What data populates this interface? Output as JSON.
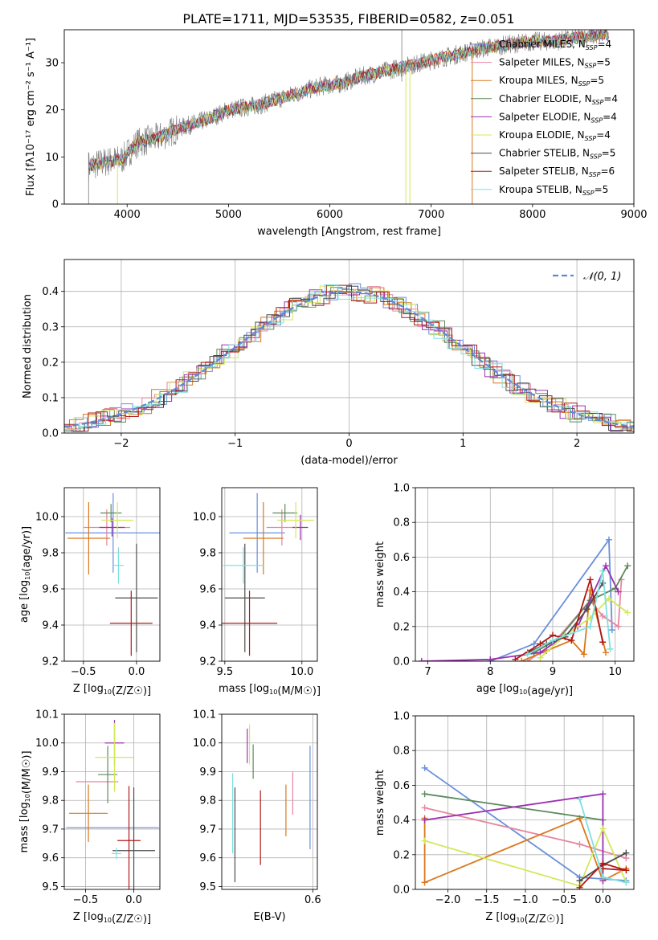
{
  "colors": {
    "Chabrier MILES": "#6a8fdc",
    "Salpeter MILES": "#e5879f",
    "Kroupa MILES": "#d9781d",
    "Chabrier ELODIE": "#5c8a5c",
    "Salpeter ELODIE": "#9c30b0",
    "Kroupa ELODIE": "#d3e85a",
    "Chabrier STELIB": "#4d4d4d",
    "Salpeter STELIB": "#b01818",
    "Kroupa STELIB": "#7fe0e0",
    "normal": "#5b8ad6"
  },
  "chart_data": [
    {
      "id": "spectrum",
      "type": "line",
      "title": "PLATE=1711, MJD=53535, FIBERID=0582, z=0.051",
      "xlabel": "wavelength [Angstrom, rest frame]",
      "ylabel": "Flux [fλ10⁻¹⁷ erg cm⁻² s⁻¹ A⁻¹]",
      "xlim": [
        3380,
        9000
      ],
      "ylim": [
        0,
        37
      ],
      "xticks": [
        4000,
        5000,
        6000,
        7000,
        8000,
        9000
      ],
      "yticks": [
        0,
        10,
        20,
        30
      ],
      "continuum": {
        "x": [
          3620,
          3800,
          3950,
          4100,
          4300,
          4500,
          4800,
          5000,
          5300,
          5600,
          5900,
          6100,
          6300,
          6500,
          6800,
          7000,
          7200,
          7500,
          7800,
          8000,
          8200,
          8500,
          8750
        ],
        "y": [
          8,
          9,
          9.5,
          13,
          14,
          16,
          18,
          20,
          21,
          23,
          25,
          25.5,
          27,
          28,
          29.5,
          30.5,
          31.5,
          33,
          34,
          34.5,
          34.5,
          35.5,
          36
        ]
      },
      "legend": [
        {
          "label": "Chabrier MILES, N",
          "sub": "SSP",
          "tail": "=4"
        },
        {
          "label": "Salpeter MILES, N",
          "sub": "SSP",
          "tail": "=5"
        },
        {
          "label": "Kroupa MILES, N",
          "sub": "SSP",
          "tail": "=5"
        },
        {
          "label": "Chabrier ELODIE, N",
          "sub": "SSP",
          "tail": "=4"
        },
        {
          "label": "Salpeter ELODIE, N",
          "sub": "SSP",
          "tail": "=4"
        },
        {
          "label": "Kroupa ELODIE, N",
          "sub": "SSP",
          "tail": "=4"
        },
        {
          "label": "Chabrier STELIB, N",
          "sub": "SSP",
          "tail": "=5"
        },
        {
          "label": "Salpeter STELIB, N",
          "sub": "SSP",
          "tail": "=6"
        },
        {
          "label": "Kroupa STELIB, N",
          "sub": "SSP",
          "tail": "=5"
        }
      ],
      "legend_position": "right"
    },
    {
      "id": "residuals",
      "type": "histogram",
      "xlabel": "(data-model)/error",
      "ylabel": "Normed distribution",
      "xlim": [
        -2.5,
        2.5
      ],
      "ylim": [
        0,
        0.49
      ],
      "xticks": [
        -2,
        -1,
        0,
        1,
        2
      ],
      "yticks": [
        0.0,
        0.1,
        0.2,
        0.3,
        0.4
      ],
      "legend": "𝒩(0, 1)",
      "legend_position": "top-right",
      "grid": true
    },
    {
      "id": "age-vs-Z",
      "type": "errorbar",
      "xlabel": "Z [log10(Z/Z☉)]",
      "ylabel": "age  [log10(age/yr)]",
      "xlim": [
        -0.68,
        0.22
      ],
      "ylim": [
        9.2,
        10.16
      ],
      "xticks": [
        -0.5,
        0.0
      ],
      "yticks": [
        9.2,
        9.4,
        9.6,
        9.8,
        10.0
      ],
      "points": [
        {
          "model": "Chabrier MILES",
          "x": -0.22,
          "xerr": 0.45,
          "y": 9.91,
          "yerr": 0.22
        },
        {
          "model": "Salpeter MILES",
          "x": -0.28,
          "xerr": 0.22,
          "y": 9.94,
          "yerr": 0.1
        },
        {
          "model": "Kroupa MILES",
          "x": -0.45,
          "xerr": 0.2,
          "y": 9.88,
          "yerr": 0.2
        },
        {
          "model": "Chabrier ELODIE",
          "x": -0.24,
          "xerr": 0.1,
          "y": 10.02,
          "yerr": 0.05
        },
        {
          "model": "Salpeter ELODIE",
          "x": -0.23,
          "xerr": 0.12,
          "y": 9.94,
          "yerr": 0.05
        },
        {
          "model": "Kroupa ELODIE",
          "x": -0.18,
          "xerr": 0.15,
          "y": 9.98,
          "yerr": 0.1
        },
        {
          "model": "Chabrier STELIB",
          "x": 0.0,
          "xerr": 0.2,
          "y": 9.55,
          "yerr": 0.3
        },
        {
          "model": "Salpeter STELIB",
          "x": -0.05,
          "xerr": 0.2,
          "y": 9.41,
          "yerr": 0.18
        },
        {
          "model": "Kroupa STELIB",
          "x": -0.17,
          "xerr": 0.05,
          "y": 9.73,
          "yerr": 0.1
        }
      ]
    },
    {
      "id": "age-vs-mass",
      "type": "errorbar",
      "xlabel": "mass [log10(M/M☉)]",
      "ylabel": "",
      "xlim": [
        9.48,
        10.1
      ],
      "ylim": [
        9.2,
        10.16
      ],
      "xticks": [
        9.5,
        10.0
      ],
      "yticks": [
        9.2,
        9.4,
        9.6,
        9.8,
        10.0
      ],
      "points": [
        {
          "model": "Chabrier MILES",
          "x": 9.71,
          "xerr": 0.18,
          "y": 9.91,
          "yerr": 0.22
        },
        {
          "model": "Salpeter MILES",
          "x": 9.87,
          "xerr": 0.1,
          "y": 9.94,
          "yerr": 0.1
        },
        {
          "model": "Kroupa MILES",
          "x": 9.75,
          "xerr": 0.13,
          "y": 9.88,
          "yerr": 0.2
        },
        {
          "model": "Chabrier ELODIE",
          "x": 9.89,
          "xerr": 0.08,
          "y": 10.02,
          "yerr": 0.05
        },
        {
          "model": "Salpeter ELODIE",
          "x": 9.99,
          "xerr": 0.05,
          "y": 9.94,
          "yerr": 0.07
        },
        {
          "model": "Kroupa ELODIE",
          "x": 9.96,
          "xerr": 0.12,
          "y": 9.98,
          "yerr": 0.1
        },
        {
          "model": "Chabrier STELIB",
          "x": 9.63,
          "xerr": 0.13,
          "y": 9.55,
          "yerr": 0.3
        },
        {
          "model": "Salpeter STELIB",
          "x": 9.66,
          "xerr": 0.18,
          "y": 9.41,
          "yerr": 0.18
        },
        {
          "model": "Kroupa STELIB",
          "x": 9.62,
          "xerr": 0.13,
          "y": 9.73,
          "yerr": 0.1
        }
      ]
    },
    {
      "id": "massweight-vs-age",
      "type": "line",
      "xlabel": "age  [log10(age/yr)]",
      "ylabel": "mass weight",
      "xlim": [
        6.8,
        10.3
      ],
      "ylim": [
        0,
        1
      ],
      "xticks": [
        7,
        8,
        9,
        10
      ],
      "yticks": [
        0.0,
        0.2,
        0.4,
        0.6,
        0.8,
        1.0
      ],
      "grid": true,
      "series": [
        {
          "model": "Chabrier MILES",
          "x": [
            8.0,
            8.7,
            9.9,
            9.95
          ],
          "y": [
            0.0,
            0.1,
            0.7,
            0.18
          ]
        },
        {
          "model": "Salpeter MILES",
          "x": [
            8.6,
            9.0,
            9.6,
            9.8,
            10.05,
            10.1
          ],
          "y": [
            0.0,
            0.1,
            0.35,
            0.26,
            0.2,
            0.47
          ]
        },
        {
          "model": "Kroupa MILES",
          "x": [
            8.5,
            8.9,
            9.3,
            9.5,
            9.6,
            9.85
          ],
          "y": [
            0.0,
            0.06,
            0.12,
            0.04,
            0.41,
            0.05
          ]
        },
        {
          "model": "Chabrier ELODIE",
          "x": [
            8.7,
            9.1,
            9.6,
            10.0,
            10.2
          ],
          "y": [
            0.05,
            0.13,
            0.35,
            0.42,
            0.55
          ]
        },
        {
          "model": "Salpeter ELODIE",
          "x": [
            6.9,
            8.0,
            8.8,
            9.4,
            9.85,
            10.05
          ],
          "y": [
            0.0,
            0.01,
            0.05,
            0.2,
            0.55,
            0.4
          ]
        },
        {
          "model": "Kroupa ELODIE",
          "x": [
            8.8,
            9.2,
            9.6,
            9.9,
            10.2
          ],
          "y": [
            0.02,
            0.15,
            0.25,
            0.36,
            0.28
          ]
        },
        {
          "model": "Chabrier STELIB",
          "x": [
            8.6,
            8.9,
            9.2,
            9.55,
            9.8
          ],
          "y": [
            0.05,
            0.1,
            0.14,
            0.3,
            0.45
          ]
        },
        {
          "model": "Salpeter STELIB",
          "x": [
            8.4,
            8.8,
            9.0,
            9.3,
            9.6,
            9.8
          ],
          "y": [
            0.01,
            0.1,
            0.15,
            0.12,
            0.47,
            0.11
          ]
        },
        {
          "model": "Kroupa STELIB",
          "x": [
            8.6,
            9.0,
            9.6,
            9.8,
            9.92
          ],
          "y": [
            0.04,
            0.12,
            0.2,
            0.52,
            0.07
          ]
        }
      ]
    },
    {
      "id": "mass-vs-Z",
      "type": "errorbar",
      "xlabel": "Z [log10(Z/Z☉)]",
      "ylabel": "mass [log10(M/M☉)]",
      "xlim": [
        -0.72,
        0.27
      ],
      "ylim": [
        9.49,
        10.1
      ],
      "xticks": [
        -0.5,
        0.0
      ],
      "yticks": [
        9.5,
        9.6,
        9.7,
        9.8,
        9.9,
        10.0,
        10.1
      ],
      "points": [
        {
          "model": "Chabrier MILES",
          "x": -0.22,
          "xerr": 0.48,
          "y": 9.705,
          "yerr": 0.0
        },
        {
          "model": "Salpeter MILES",
          "x": -0.38,
          "xerr": 0.22,
          "y": 9.865,
          "yerr": 0.0
        },
        {
          "model": "Kroupa MILES",
          "x": -0.47,
          "xerr": 0.2,
          "y": 9.755,
          "yerr": 0.1
        },
        {
          "model": "Chabrier ELODIE",
          "x": -0.27,
          "xerr": 0.1,
          "y": 9.89,
          "yerr": 0.1
        },
        {
          "model": "Salpeter ELODIE",
          "x": -0.2,
          "xerr": 0.1,
          "y": 10.0,
          "yerr": 0.08
        },
        {
          "model": "Kroupa ELODIE",
          "x": -0.2,
          "xerr": 0.2,
          "y": 9.95,
          "yerr": 0.12
        },
        {
          "model": "Chabrier STELIB",
          "x": 0.0,
          "xerr": 0.22,
          "y": 9.625,
          "yerr": 0.22
        },
        {
          "model": "Salpeter STELIB",
          "x": -0.05,
          "xerr": 0.12,
          "y": 9.66,
          "yerr": 0.19
        },
        {
          "model": "Kroupa STELIB",
          "x": -0.18,
          "xerr": 0.05,
          "y": 9.615,
          "yerr": 0.02
        }
      ]
    },
    {
      "id": "mass-vs-EBV",
      "type": "errorbar",
      "xlabel": "E(B-V)",
      "ylabel": "",
      "xlim": [
        0.4,
        0.61
      ],
      "ylim": [
        9.49,
        10.1
      ],
      "xticks": [
        0.6
      ],
      "yticks": [
        9.5,
        9.6,
        9.7,
        9.8,
        9.9,
        10.0,
        10.1
      ],
      "points": [
        {
          "model": "Chabrier MILES",
          "x": 0.594,
          "xerr": 0.0,
          "y": 9.81,
          "yerr": 0.18
        },
        {
          "model": "Salpeter MILES",
          "x": 0.556,
          "xerr": 0.0,
          "y": 9.825,
          "yerr": 0.075
        },
        {
          "model": "Kroupa MILES",
          "x": 0.541,
          "xerr": 0.0,
          "y": 9.765,
          "yerr": 0.09
        },
        {
          "model": "Chabrier ELODIE",
          "x": 0.469,
          "xerr": 0.0,
          "y": 9.935,
          "yerr": 0.06
        },
        {
          "model": "Salpeter ELODIE",
          "x": 0.456,
          "xerr": 0.0,
          "y": 9.99,
          "yerr": 0.06
        },
        {
          "model": "Kroupa ELODIE",
          "x": 0.461,
          "xerr": 0.0,
          "y": 9.995,
          "yerr": 0.07
        },
        {
          "model": "Chabrier STELIB",
          "x": 0.429,
          "xerr": 0.0,
          "y": 9.68,
          "yerr": 0.165
        },
        {
          "model": "Salpeter STELIB",
          "x": 0.485,
          "xerr": 0.0,
          "y": 9.705,
          "yerr": 0.13
        },
        {
          "model": "Kroupa STELIB",
          "x": 0.424,
          "xerr": 0.0,
          "y": 9.755,
          "yerr": 0.14
        }
      ]
    },
    {
      "id": "massweight-vs-Z",
      "type": "line",
      "xlabel": "Z [log10(Z/Z☉)]",
      "ylabel": "mass weight",
      "xlim": [
        -2.42,
        0.4
      ],
      "ylim": [
        0,
        1
      ],
      "xticks": [
        -2.0,
        -1.5,
        -1.0,
        -0.5,
        0.0
      ],
      "yticks": [
        0.0,
        0.2,
        0.4,
        0.6,
        0.8,
        1.0
      ],
      "grid": true,
      "series": [
        {
          "model": "Chabrier MILES",
          "x": [
            -2.3,
            -0.3,
            0.3
          ],
          "y": [
            0.7,
            0.07,
            0.05
          ]
        },
        {
          "model": "Salpeter MILES",
          "x": [
            -2.3,
            -0.3,
            0.3
          ],
          "y": [
            0.47,
            0.26,
            0.18
          ]
        },
        {
          "model": "Kroupa MILES",
          "x": [
            -2.3,
            -2.3,
            -0.3,
            0.0,
            0.3
          ],
          "y": [
            0.41,
            0.04,
            0.41,
            0.05,
            0.12
          ]
        },
        {
          "model": "Chabrier ELODIE",
          "x": [
            -2.3,
            0.0
          ],
          "y": [
            0.55,
            0.4
          ]
        },
        {
          "model": "Salpeter ELODIE",
          "x": [
            -2.3,
            0.0,
            0.0
          ],
          "y": [
            0.4,
            0.55,
            0.05
          ]
        },
        {
          "model": "Kroupa ELODIE",
          "x": [
            -2.3,
            -0.3,
            0.0,
            0.3
          ],
          "y": [
            0.28,
            0.02,
            0.35,
            0.04
          ]
        },
        {
          "model": "Chabrier STELIB",
          "x": [
            -0.3,
            0.0,
            0.3
          ],
          "y": [
            0.05,
            0.14,
            0.21
          ]
        },
        {
          "model": "Salpeter STELIB",
          "x": [
            -0.3,
            0.0,
            0.3,
            0.0
          ],
          "y": [
            0.01,
            0.15,
            0.11,
            0.12
          ]
        },
        {
          "model": "Kroupa STELIB",
          "x": [
            -0.3,
            0.0,
            0.3
          ],
          "y": [
            0.52,
            0.07,
            0.04
          ]
        }
      ]
    }
  ]
}
